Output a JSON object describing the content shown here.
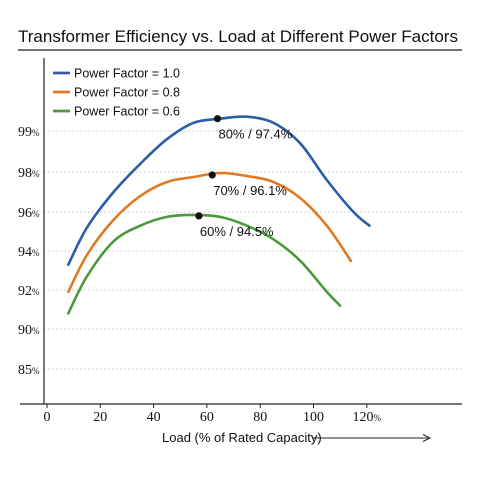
{
  "chart_data": {
    "type": "line",
    "title": "Transformer Efficiency vs. Load at Different Power Factors",
    "xlabel": "Load (% of Rated Capacity)",
    "ylabel": "",
    "xlim": [
      0,
      125
    ],
    "x_ticks": [
      "0",
      "20",
      "40",
      "60",
      "80",
      "100",
      "120%"
    ],
    "y_ticks": [
      "99%",
      "98%",
      "96%",
      "94%",
      "92%",
      "90%",
      "85%"
    ],
    "grid": true,
    "legend_position": "top-left",
    "series": [
      {
        "name": "Power Factor = 1.0",
        "color": "#2a5fa8",
        "points": [
          [
            8,
            93.3
          ],
          [
            15,
            95.2
          ],
          [
            25,
            97.0
          ],
          [
            35,
            98.2
          ],
          [
            45,
            98.8
          ],
          [
            55,
            99.2
          ],
          [
            65,
            99.3
          ],
          [
            75,
            99.35
          ],
          [
            85,
            99.2
          ],
          [
            95,
            98.7
          ],
          [
            105,
            97.6
          ],
          [
            115,
            96.0
          ],
          [
            121,
            95.3
          ]
        ]
      },
      {
        "name": "Power Factor = 0.8",
        "color": "#e07a22",
        "points": [
          [
            8,
            91.9
          ],
          [
            15,
            93.8
          ],
          [
            25,
            95.6
          ],
          [
            35,
            96.8
          ],
          [
            45,
            97.5
          ],
          [
            55,
            97.75
          ],
          [
            65,
            97.95
          ],
          [
            75,
            97.8
          ],
          [
            85,
            97.5
          ],
          [
            95,
            96.7
          ],
          [
            105,
            95.3
          ],
          [
            114,
            93.5
          ]
        ]
      },
      {
        "name": "Power Factor = 0.6",
        "color": "#4a9a3c",
        "points": [
          [
            8,
            90.8
          ],
          [
            15,
            92.7
          ],
          [
            25,
            94.5
          ],
          [
            35,
            95.3
          ],
          [
            45,
            95.75
          ],
          [
            55,
            95.85
          ],
          [
            65,
            95.75
          ],
          [
            75,
            95.3
          ],
          [
            85,
            94.6
          ],
          [
            95,
            93.5
          ],
          [
            105,
            91.9
          ],
          [
            110,
            91.2
          ]
        ]
      }
    ],
    "annotations": [
      {
        "text": "80% / 97.4%",
        "series": 0,
        "x": 64,
        "y": 99.3
      },
      {
        "text": "70% / 96.1%",
        "series": 1,
        "x": 62,
        "y": 97.85
      },
      {
        "text": "60% / 94.5%",
        "series": 2,
        "x": 57,
        "y": 95.8
      }
    ]
  }
}
